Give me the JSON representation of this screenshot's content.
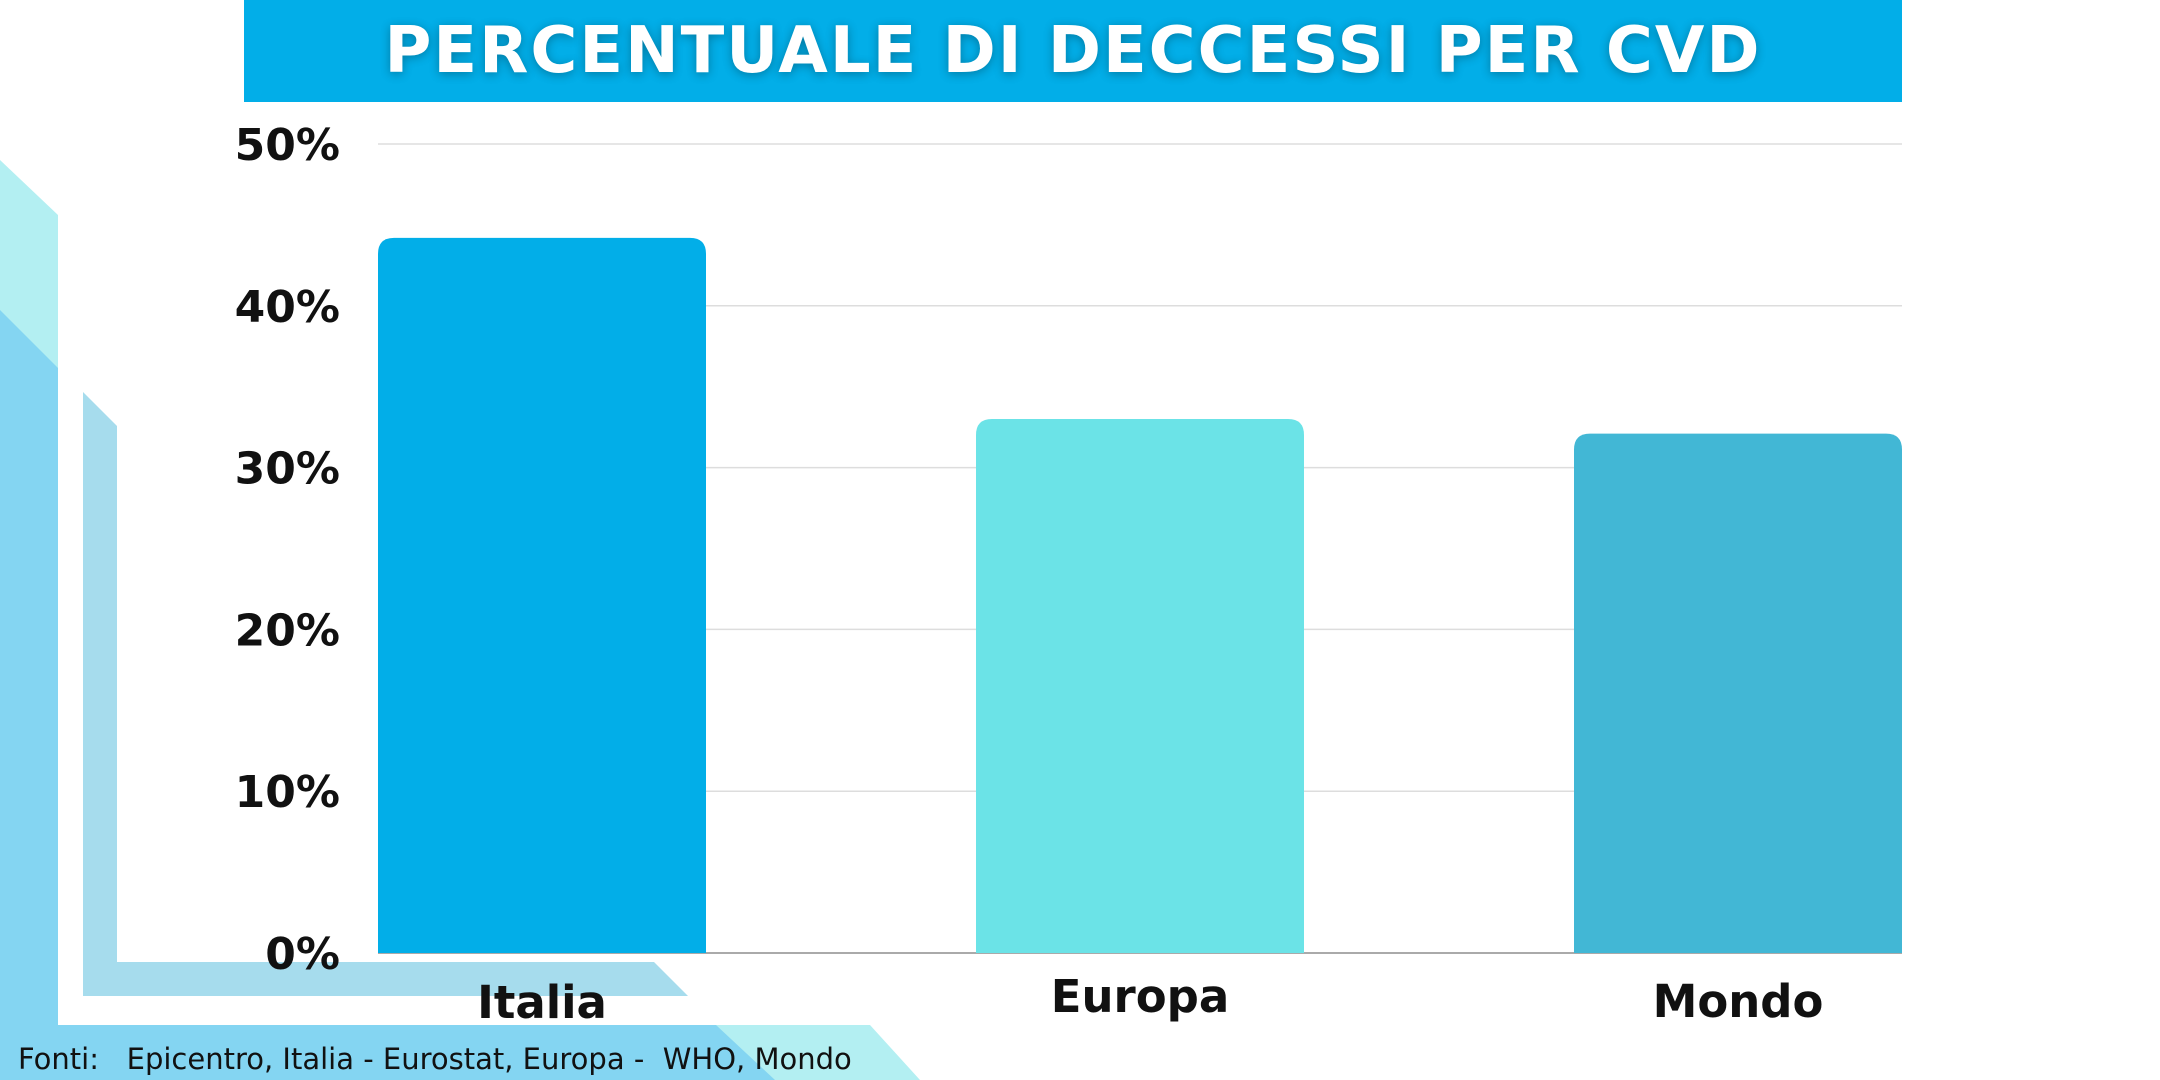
{
  "title": "PERCENTUALE DI DECCESSI PER CVD",
  "footer": {
    "label": "Fonti:",
    "sources": "Epicentro, Italia - Eurostat, Europa -  WHO, Mondo"
  },
  "colors": {
    "header": "#02aee8",
    "deco_light": "#b3eff2",
    "deco_mid": "#84d5f2",
    "deco_stripe": "#a6dced",
    "grid": "#dddddd",
    "axis": "#aaaaaa"
  },
  "chart_data": {
    "type": "bar",
    "categories": [
      "Italia",
      "Europa",
      "Mondo"
    ],
    "values": [
      44.2,
      33.0,
      32.1
    ],
    "colors": [
      "#02aee8",
      "#6be3e7",
      "#42b7d5"
    ],
    "ylim": [
      0,
      50
    ],
    "yticks": [
      "0%",
      "10%",
      "20%",
      "30%",
      "40%",
      "50%"
    ],
    "grid": true,
    "xlabel": "",
    "ylabel": ""
  }
}
